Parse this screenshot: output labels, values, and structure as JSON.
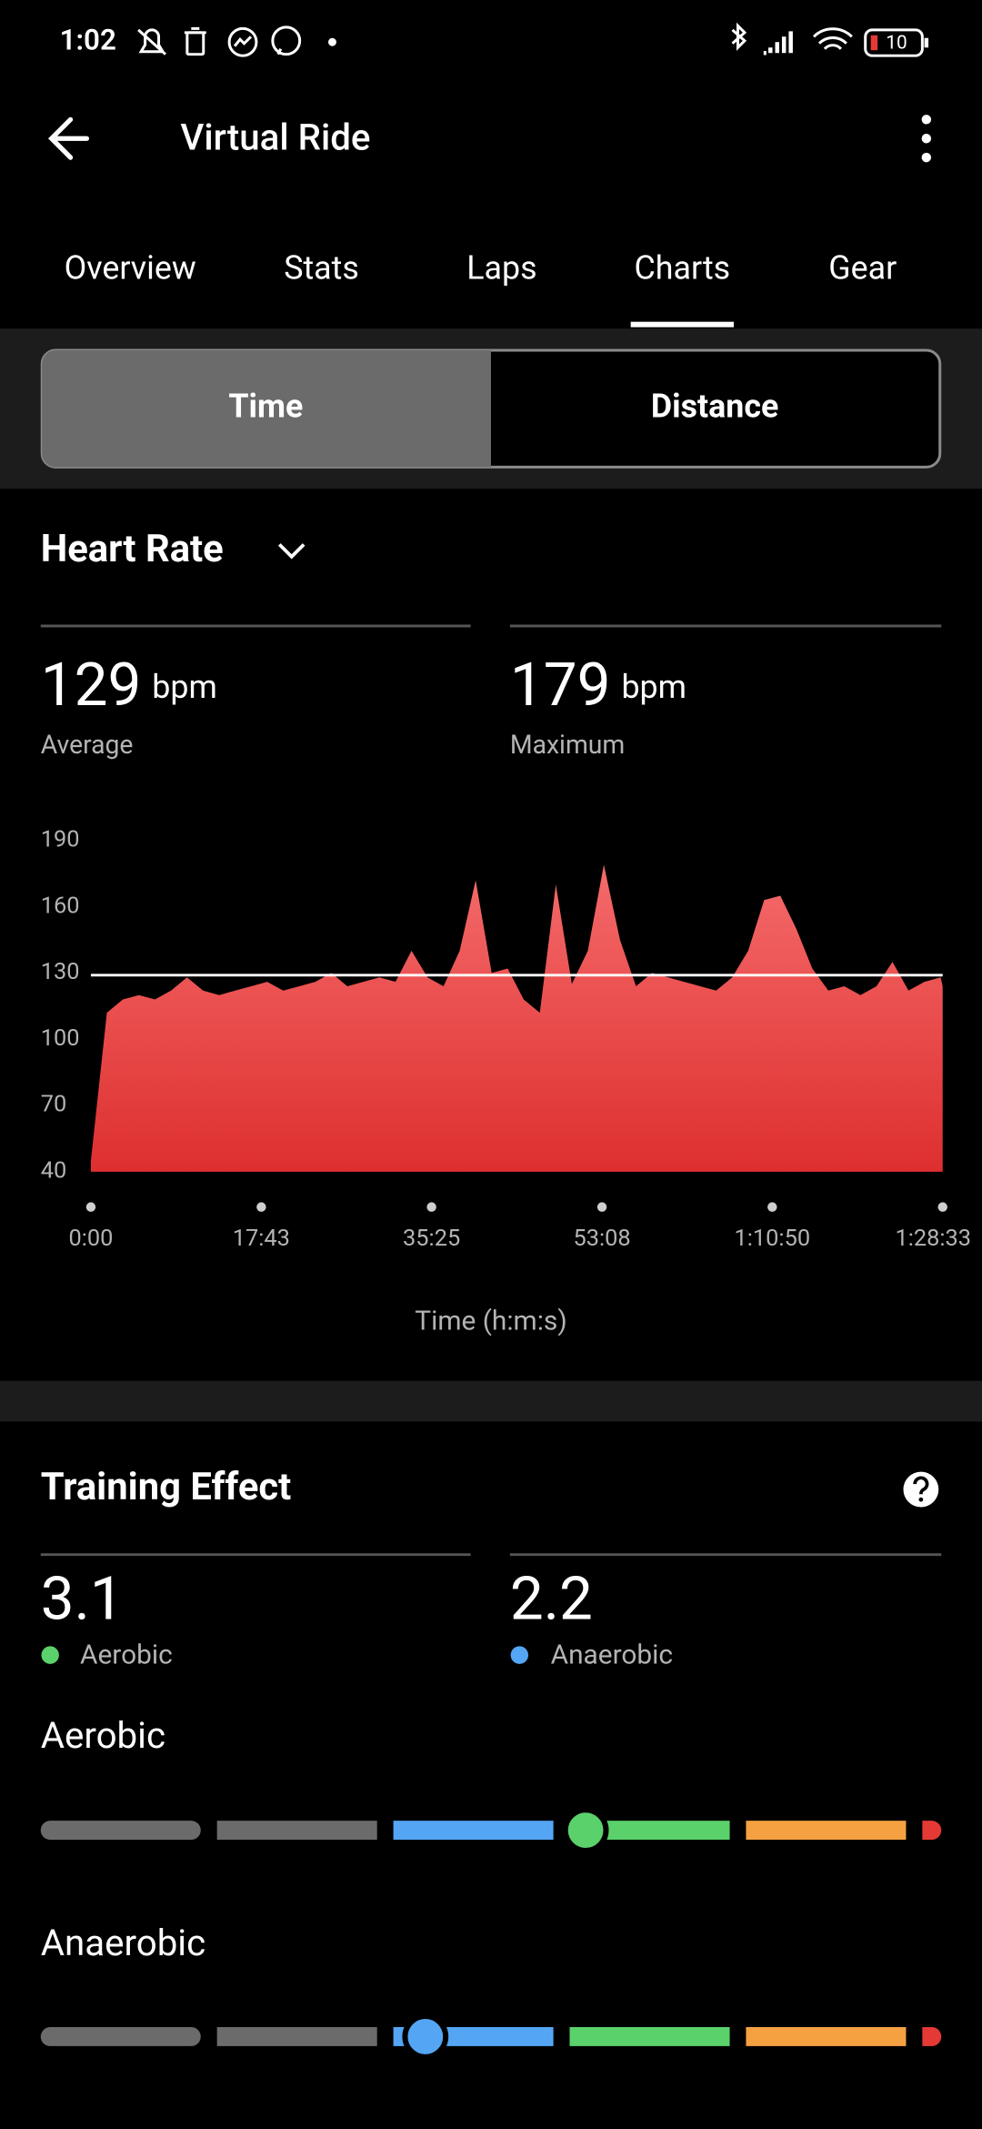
{
  "status_bar": {
    "time": "1:02",
    "battery": "10"
  },
  "header": {
    "title": "Virtual Ride"
  },
  "tabs": [
    "Overview",
    "Stats",
    "Laps",
    "Charts",
    "Gear"
  ],
  "toggle": [
    "Time",
    "Distance"
  ],
  "heart_rate": {
    "title": "Heart Rate",
    "average": {
      "value": 129,
      "unit": "bpm",
      "label": "Average"
    },
    "maximum": {
      "value": 179,
      "unit": "bpm",
      "label": "Maximum"
    },
    "chart": {
      "type": "area",
      "color_top": "#f56b6b",
      "color_bottom": "#de2f2f",
      "ylim": [
        40,
        190
      ],
      "yticks": [
        40,
        70,
        100,
        130,
        160,
        190
      ],
      "xlim": [
        0,
        5313
      ],
      "xticks": [
        {
          "value": 0,
          "label": "0:00"
        },
        {
          "value": 1063,
          "label": "17:43"
        },
        {
          "value": 2125,
          "label": "35:25"
        },
        {
          "value": 3188,
          "label": "53:08"
        },
        {
          "value": 4250,
          "label": "1:10:50"
        },
        {
          "value": 5313,
          "label": "1:28:33"
        }
      ],
      "xlabel": "Time (h:m:s)",
      "x": [
        0,
        100,
        200,
        300,
        400,
        500,
        600,
        700,
        800,
        900,
        1000,
        1100,
        1200,
        1300,
        1400,
        1500,
        1600,
        1700,
        1800,
        1900,
        2000,
        2100,
        2200,
        2300,
        2400,
        2500,
        2600,
        2700,
        2800,
        2900,
        3000,
        3100,
        3200,
        3300,
        3400,
        3500,
        3600,
        3700,
        3800,
        3900,
        4000,
        4100,
        4200,
        4300,
        4400,
        4500,
        4600,
        4700,
        4800,
        4900,
        5000,
        5100,
        5200,
        5300,
        5313
      ],
      "values": [
        45,
        112,
        118,
        120,
        118,
        122,
        128,
        122,
        120,
        122,
        124,
        126,
        122,
        124,
        126,
        130,
        124,
        126,
        128,
        126,
        140,
        128,
        124,
        140,
        172,
        130,
        132,
        118,
        112,
        170,
        125,
        140,
        179,
        145,
        124,
        130,
        128,
        126,
        124,
        122,
        128,
        140,
        163,
        165,
        150,
        132,
        122,
        124,
        120,
        124,
        135,
        122,
        126,
        128,
        124
      ]
    }
  },
  "training_effect": {
    "title": "Training Effect",
    "aerobic": {
      "value": 3.1,
      "label": "Aerobic",
      "color": "#5bd16b"
    },
    "anaerobic": {
      "value": 2.2,
      "label": "Anaerobic",
      "color": "#54a6f5"
    },
    "scales": [
      {
        "title": "Aerobic"
      },
      {
        "title": "Anaerobic"
      }
    ]
  }
}
